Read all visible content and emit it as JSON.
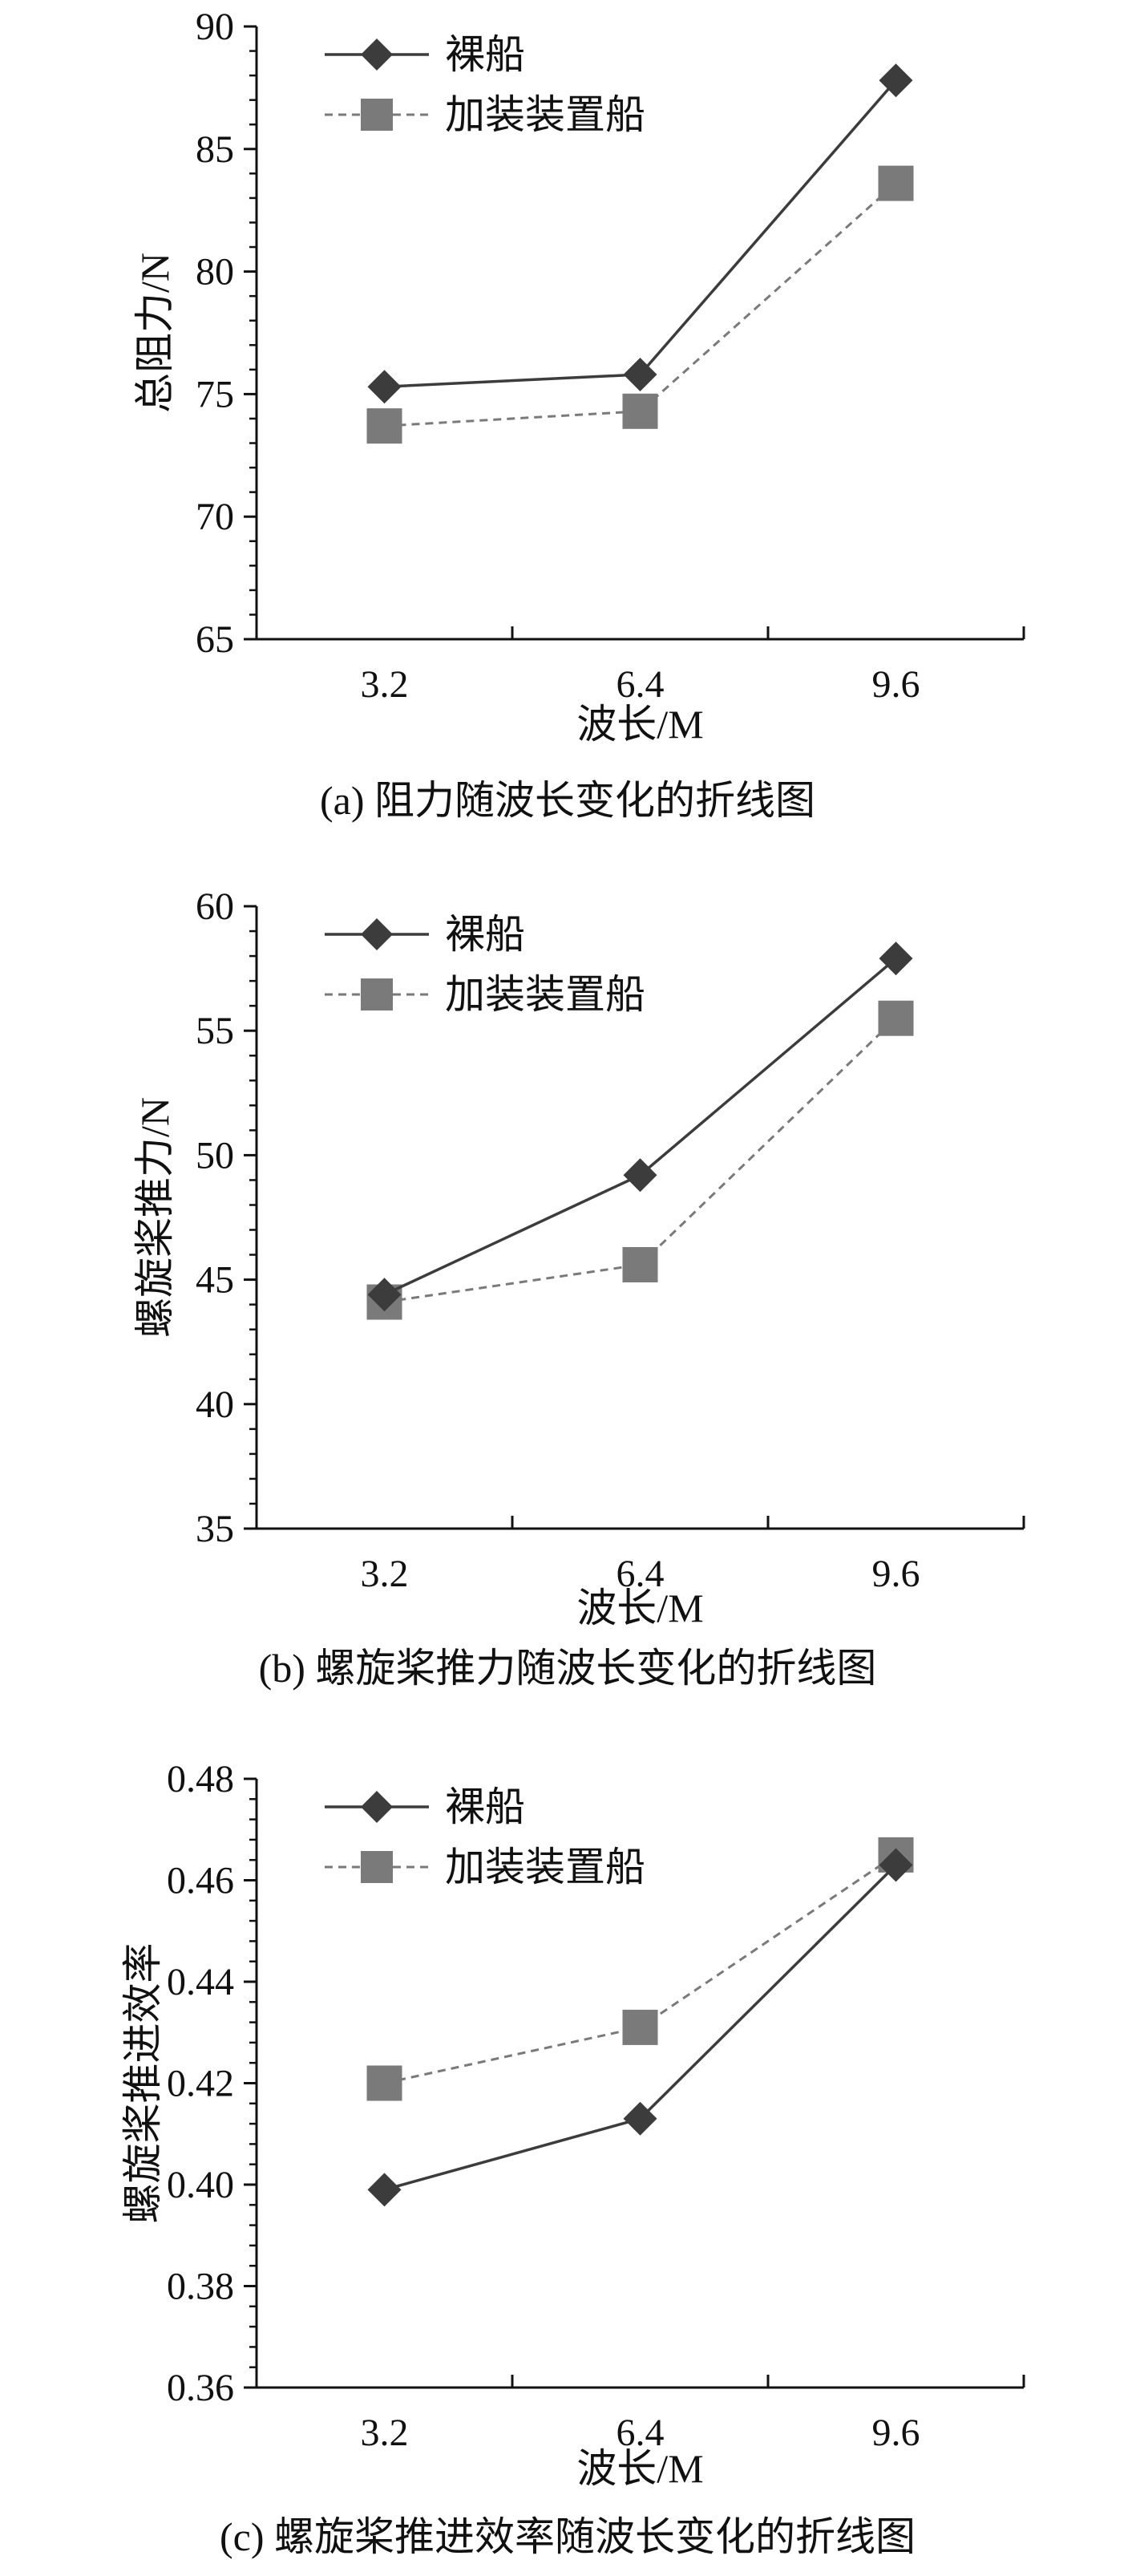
{
  "colors": {
    "series_1": "#3c3c3c",
    "series_2": "#7a7a7a",
    "axis": "#111111"
  },
  "chart_data": [
    {
      "type": "line",
      "caption": "(a) 阻力随波长变化的折线图",
      "xlabel": "波长/M",
      "ylabel": "总阻力/N",
      "categories": [
        "3.2",
        "6.4",
        "9.6"
      ],
      "yticks": [
        "65",
        "70",
        "75",
        "80",
        "85",
        "90"
      ],
      "ylim": [
        65,
        90
      ],
      "legend_position": "top-left",
      "series": [
        {
          "name": "裸船",
          "marker": "diamond",
          "line": "solid",
          "values": [
            75.3,
            75.8,
            87.8
          ]
        },
        {
          "name": "加装装置船",
          "marker": "square",
          "line": "dashed",
          "values": [
            73.7,
            74.3,
            83.6
          ]
        }
      ]
    },
    {
      "type": "line",
      "caption": "(b) 螺旋桨推力随波长变化的折线图",
      "xlabel": "波长/M",
      "ylabel": "螺旋桨推力/N",
      "categories": [
        "3.2",
        "6.4",
        "9.6"
      ],
      "yticks": [
        "35",
        "40",
        "45",
        "50",
        "55",
        "60"
      ],
      "ylim": [
        35,
        60
      ],
      "legend_position": "top-left",
      "series": [
        {
          "name": "裸船",
          "marker": "diamond",
          "line": "solid",
          "values": [
            44.4,
            49.2,
            57.9
          ]
        },
        {
          "name": "加装装置船",
          "marker": "square",
          "line": "dashed",
          "values": [
            44.1,
            45.6,
            55.5
          ]
        }
      ]
    },
    {
      "type": "line",
      "caption": "(c) 螺旋桨推进效率随波长变化的折线图",
      "xlabel": "波长/M",
      "ylabel": "螺旋桨推进效率",
      "categories": [
        "3.2",
        "6.4",
        "9.6"
      ],
      "yticks": [
        "0.36",
        "0.38",
        "0.40",
        "0.42",
        "0.44",
        "0.46",
        "0.48"
      ],
      "ylim": [
        0.36,
        0.48
      ],
      "legend_position": "top-left",
      "series": [
        {
          "name": "裸船",
          "marker": "diamond",
          "line": "solid",
          "values": [
            0.399,
            0.413,
            0.463
          ]
        },
        {
          "name": "加装装置船",
          "marker": "square",
          "line": "dashed",
          "values": [
            0.42,
            0.431,
            0.465
          ]
        }
      ]
    }
  ]
}
